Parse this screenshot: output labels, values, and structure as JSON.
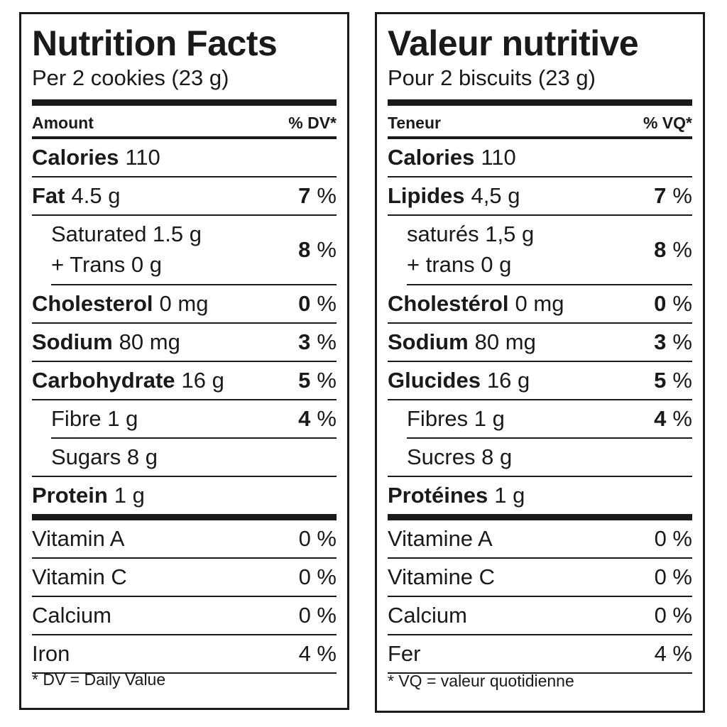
{
  "english": {
    "title": "Nutrition Facts",
    "serving": "Per 2 cookies (23 g)",
    "amount_header": "Amount",
    "dv_header": "% DV*",
    "calories": {
      "label": "Calories",
      "value": "110"
    },
    "fat": {
      "label": "Fat",
      "value": "4.5 g",
      "pct": "7",
      "unit": "%"
    },
    "saturated": {
      "line1": "Saturated 1.5 g",
      "line2": "+ Trans 0 g",
      "pct": "8",
      "unit": "%"
    },
    "cholesterol": {
      "label": "Cholesterol",
      "value": "0 mg",
      "pct": "0",
      "unit": "%"
    },
    "sodium": {
      "label": "Sodium",
      "value": "80 mg",
      "pct": "3",
      "unit": "%"
    },
    "carbohydrate": {
      "label": "Carbohydrate",
      "value": "16 g",
      "pct": "5",
      "unit": "%"
    },
    "fibre": {
      "label": "Fibre 1 g",
      "pct": "4",
      "unit": "%"
    },
    "sugars": {
      "label": "Sugars 8 g"
    },
    "protein": {
      "label": "Protein",
      "value": "1 g"
    },
    "vitamins": [
      {
        "label": "Vitamin A",
        "pct": "0 %"
      },
      {
        "label": "Vitamin C",
        "pct": "0 %"
      },
      {
        "label": "Calcium",
        "pct": "0 %"
      },
      {
        "label": "Iron",
        "pct": "4 %"
      }
    ],
    "footnote": "* DV = Daily Value"
  },
  "french": {
    "title": "Valeur nutritive",
    "serving": "Pour 2 biscuits (23 g)",
    "amount_header": "Teneur",
    "dv_header": "% VQ*",
    "calories": {
      "label": "Calories",
      "value": "110"
    },
    "fat": {
      "label": "Lipides",
      "value": "4,5 g",
      "pct": "7",
      "unit": "%"
    },
    "saturated": {
      "line1": "saturés 1,5 g",
      "line2": "+ trans 0 g",
      "pct": "8",
      "unit": "%"
    },
    "cholesterol": {
      "label": "Cholestérol",
      "value": "0 mg",
      "pct": "0",
      "unit": "%"
    },
    "sodium": {
      "label": "Sodium",
      "value": "80 mg",
      "pct": "3",
      "unit": "%"
    },
    "carbohydrate": {
      "label": "Glucides",
      "value": "16 g",
      "pct": "5",
      "unit": "%"
    },
    "fibre": {
      "label": "Fibres 1 g",
      "pct": "4",
      "unit": "%"
    },
    "sugars": {
      "label": "Sucres 8 g"
    },
    "protein": {
      "label": "Protéines",
      "value": "1 g"
    },
    "vitamins": [
      {
        "label": "Vitamine A",
        "pct": "0 %"
      },
      {
        "label": "Vitamine C",
        "pct": "0 %"
      },
      {
        "label": "Calcium",
        "pct": "0 %"
      },
      {
        "label": "Fer",
        "pct": "4 %"
      }
    ],
    "footnote": "* VQ = valeur quotidienne"
  }
}
